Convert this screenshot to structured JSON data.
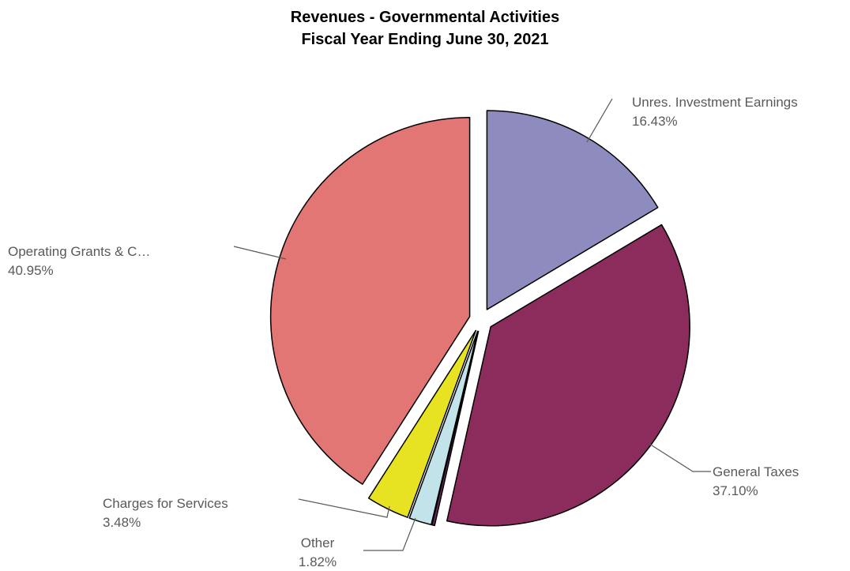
{
  "chart_data": {
    "type": "pie",
    "title": "Revenues - Governmental Activities",
    "subtitle": "Fiscal Year Ending June 30, 2021",
    "slices": [
      {
        "name": "Unres. Investment Earnings",
        "value": 16.43,
        "label": "16.43%",
        "color": "#8e8cbf",
        "exploded": true
      },
      {
        "name": "General Taxes",
        "value": 37.1,
        "label": "37.10%",
        "color": "#8b2c5c",
        "exploded": true
      },
      {
        "name": "Other",
        "value": 0.22,
        "label": "",
        "color": "#6b2c5c",
        "exploded": true
      },
      {
        "name": "Other",
        "value": 1.82,
        "label": "1.82%",
        "color": "#c3e3ea",
        "exploded": true
      },
      {
        "name": "Charges for Services",
        "value": 3.48,
        "label": "3.48%",
        "color": "#e8e322",
        "exploded": true
      },
      {
        "name": "Operating Grants & C…",
        "value": 40.95,
        "label": "40.95%",
        "color": "#e27675",
        "exploded": true
      }
    ],
    "legend": "none",
    "label_placement": "outside-with-leader-lines"
  }
}
